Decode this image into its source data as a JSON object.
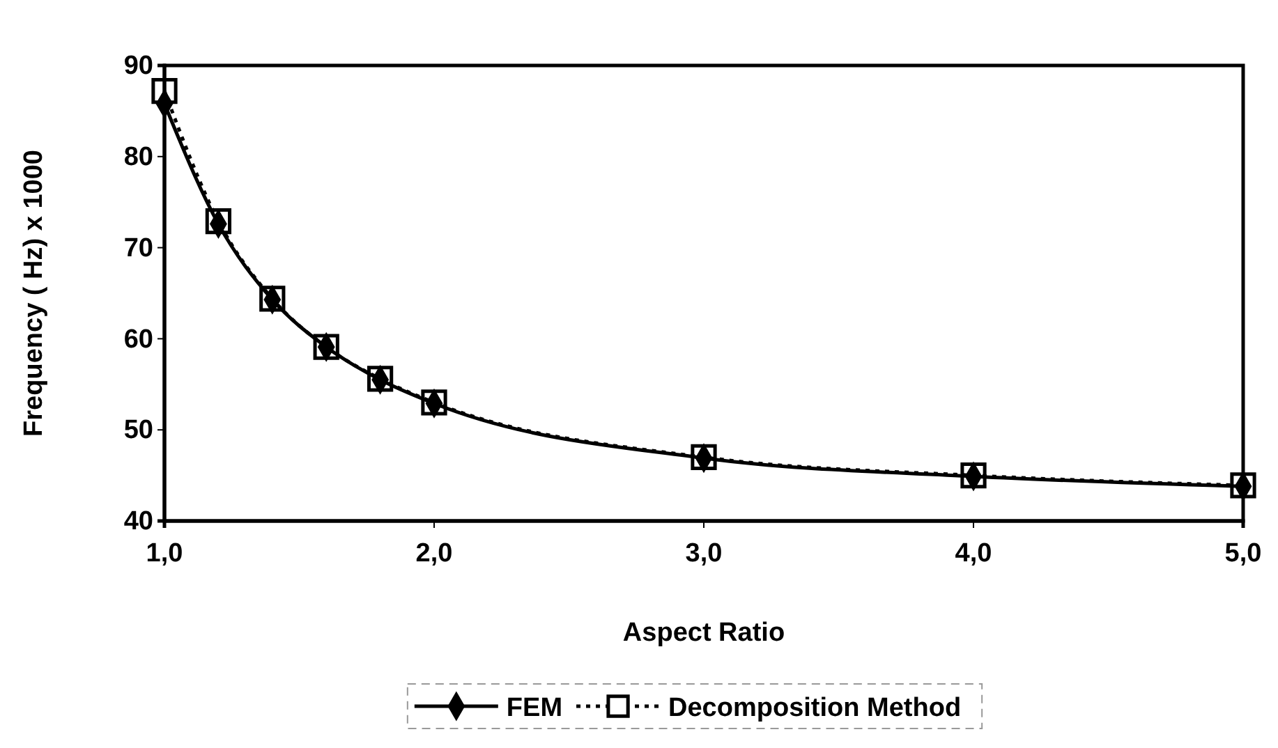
{
  "chart_data": {
    "type": "line",
    "xlabel": "Aspect Ratio",
    "ylabel": "Frequency ( Hz) x 1000",
    "x": [
      1.0,
      1.2,
      1.4,
      1.6,
      1.8,
      2.0,
      3.0,
      4.0,
      5.0
    ],
    "series": [
      {
        "name": "FEM",
        "color": "#000000",
        "marker": "diamond",
        "line_style": "solid",
        "values": [
          85.8,
          72.6,
          64.3,
          59.1,
          55.5,
          52.9,
          46.9,
          44.9,
          43.8
        ]
      },
      {
        "name": "Decomposition Method",
        "color": "#000000",
        "marker": "square",
        "line_style": "dotted",
        "values": [
          87.2,
          72.9,
          64.4,
          59.1,
          55.6,
          53.0,
          47.0,
          45.0,
          43.9
        ]
      }
    ],
    "xlim": [
      1.0,
      5.0
    ],
    "ylim": [
      40,
      90
    ],
    "xticks": [
      {
        "value": 1,
        "label": "1,0"
      },
      {
        "value": 2,
        "label": "2,0"
      },
      {
        "value": 3,
        "label": "3,0"
      },
      {
        "value": 4,
        "label": "4,0"
      },
      {
        "value": 5,
        "label": "5,0"
      }
    ],
    "yticks": [
      40,
      50,
      60,
      70,
      80,
      90
    ],
    "grid": false,
    "legend": "bottom"
  }
}
